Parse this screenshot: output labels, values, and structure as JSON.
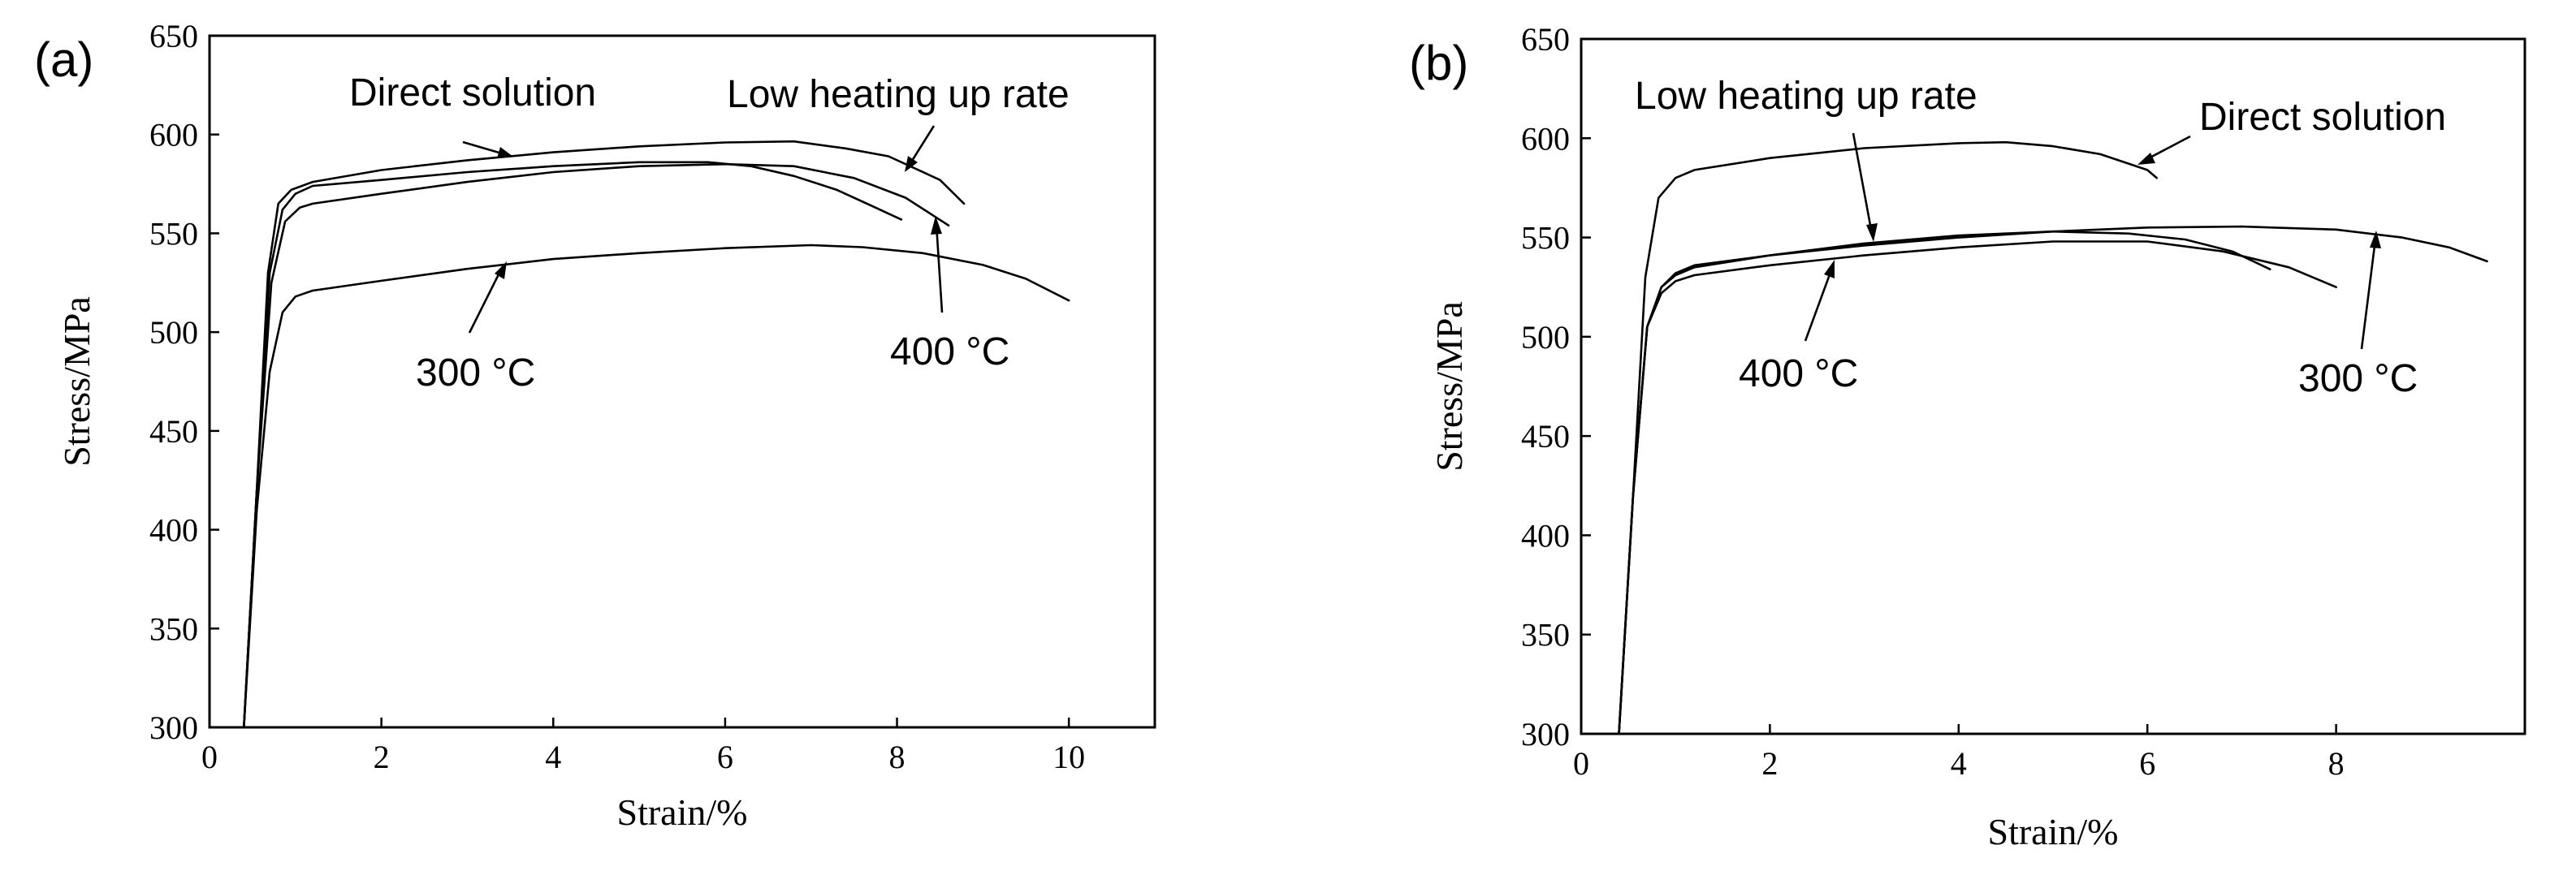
{
  "chart_data": [
    {
      "type": "line",
      "panel_label": "(a)",
      "xlabel": "Strain/%",
      "ylabel": "Stress/MPa",
      "xlim": [
        0,
        11
      ],
      "ylim": [
        300,
        650
      ],
      "xticks": [
        0,
        2,
        4,
        6,
        8,
        10
      ],
      "yticks": [
        300,
        350,
        400,
        450,
        500,
        550,
        600,
        650
      ],
      "series": [
        {
          "name": "Direct solution",
          "points": [
            [
              0.4,
              300
            ],
            [
              0.55,
              420
            ],
            [
              0.68,
              530
            ],
            [
              0.8,
              565
            ],
            [
              0.95,
              572
            ],
            [
              1.2,
              576
            ],
            [
              2,
              582
            ],
            [
              3,
              587
            ],
            [
              4,
              591
            ],
            [
              5,
              594
            ],
            [
              6,
              596
            ],
            [
              6.8,
              596.5
            ],
            [
              7.4,
              593
            ],
            [
              7.9,
              589
            ],
            [
              8.5,
              577
            ],
            [
              8.78,
              565
            ]
          ]
        },
        {
          "name": "Low heating up rate",
          "points": [
            [
              0.4,
              300
            ],
            [
              0.55,
              420
            ],
            [
              0.7,
              530
            ],
            [
              0.85,
              562
            ],
            [
              1,
              570
            ],
            [
              1.2,
              574
            ],
            [
              2,
              577
            ],
            [
              3,
              581
            ],
            [
              4,
              584
            ],
            [
              5,
              586
            ],
            [
              5.8,
              586
            ],
            [
              6.3,
              584
            ],
            [
              6.8,
              579
            ],
            [
              7.3,
              572
            ],
            [
              7.7,
              564
            ],
            [
              8.05,
              557
            ]
          ]
        },
        {
          "name": "400 °C",
          "points": [
            [
              0.4,
              300
            ],
            [
              0.55,
              420
            ],
            [
              0.72,
              525
            ],
            [
              0.88,
              556
            ],
            [
              1.05,
              563
            ],
            [
              1.2,
              565
            ],
            [
              2,
              570
            ],
            [
              3,
              576
            ],
            [
              4,
              581
            ],
            [
              5,
              584
            ],
            [
              6,
              585
            ],
            [
              6.8,
              584
            ],
            [
              7.5,
              578
            ],
            [
              8.1,
              568
            ],
            [
              8.6,
              554
            ]
          ]
        },
        {
          "name": "300 °C",
          "points": [
            [
              0.4,
              300
            ],
            [
              0.55,
              410
            ],
            [
              0.7,
              480
            ],
            [
              0.85,
              510
            ],
            [
              1,
              518
            ],
            [
              1.2,
              521
            ],
            [
              2,
              526
            ],
            [
              3,
              532
            ],
            [
              4,
              537
            ],
            [
              5,
              540
            ],
            [
              6,
              542.5
            ],
            [
              7,
              544
            ],
            [
              7.6,
              543
            ],
            [
              8.3,
              540
            ],
            [
              9,
              534
            ],
            [
              9.5,
              527
            ],
            [
              10,
              516
            ]
          ]
        }
      ],
      "annotations": [
        {
          "text": "Direct solution",
          "target_series": "Direct solution"
        },
        {
          "text": "Low heating up rate",
          "target_series": "Low heating up rate"
        },
        {
          "text": "400 °C",
          "target_series": "400 °C"
        },
        {
          "text": "300 °C",
          "target_series": "300 °C"
        }
      ]
    },
    {
      "type": "line",
      "panel_label": "(b)",
      "xlabel": "Strain/%",
      "ylabel": "Stress/MPa",
      "xlim": [
        0,
        10
      ],
      "ylim": [
        300,
        650
      ],
      "xticks": [
        0,
        2,
        4,
        6,
        8
      ],
      "yticks": [
        300,
        350,
        400,
        450,
        500,
        550,
        600,
        650
      ],
      "series": [
        {
          "name": "Direct solution",
          "points": [
            [
              0.4,
              300
            ],
            [
              0.55,
              420
            ],
            [
              0.68,
              530
            ],
            [
              0.82,
              570
            ],
            [
              1,
              580
            ],
            [
              1.2,
              584
            ],
            [
              2,
              590
            ],
            [
              3,
              595
            ],
            [
              4,
              597.5
            ],
            [
              4.5,
              598
            ],
            [
              5,
              596
            ],
            [
              5.5,
              592
            ],
            [
              6,
              584
            ],
            [
              6.1,
              580
            ]
          ]
        },
        {
          "name": "Low heating up rate",
          "points": [
            [
              0.4,
              300
            ],
            [
              0.55,
              420
            ],
            [
              0.7,
              505
            ],
            [
              0.85,
              525
            ],
            [
              1,
              531
            ],
            [
              1.2,
              535
            ],
            [
              2,
              541
            ],
            [
              3,
              547
            ],
            [
              4,
              551
            ],
            [
              5,
              553
            ],
            [
              5.8,
              552
            ],
            [
              6.4,
              549
            ],
            [
              6.9,
              543
            ],
            [
              7.3,
              534
            ]
          ]
        },
        {
          "name": "400 °C",
          "points": [
            [
              0.4,
              300
            ],
            [
              0.55,
              420
            ],
            [
              0.7,
              505
            ],
            [
              0.85,
              522
            ],
            [
              1,
              528
            ],
            [
              1.2,
              531
            ],
            [
              2,
              536
            ],
            [
              3,
              541
            ],
            [
              4,
              545
            ],
            [
              5,
              548
            ],
            [
              6,
              548
            ],
            [
              6.8,
              543
            ],
            [
              7.5,
              535
            ],
            [
              8,
              525
            ]
          ]
        },
        {
          "name": "300 °C",
          "points": [
            [
              0.4,
              300
            ],
            [
              0.55,
              420
            ],
            [
              0.7,
              505
            ],
            [
              0.85,
              525
            ],
            [
              1,
              532
            ],
            [
              1.2,
              536
            ],
            [
              2,
              541
            ],
            [
              3,
              546
            ],
            [
              4,
              550
            ],
            [
              5,
              553
            ],
            [
              6,
              555
            ],
            [
              7,
              555.5
            ],
            [
              8,
              554
            ],
            [
              8.7,
              550
            ],
            [
              9.2,
              545
            ],
            [
              9.6,
              538
            ]
          ]
        }
      ],
      "annotations": [
        {
          "text": "Low heating up rate",
          "target_series": "Low heating up rate"
        },
        {
          "text": "Direct solution",
          "target_series": "Direct solution"
        },
        {
          "text": "400 °C",
          "target_series": "400 °C"
        },
        {
          "text": "300 °C",
          "target_series": "300 °C"
        }
      ]
    }
  ]
}
